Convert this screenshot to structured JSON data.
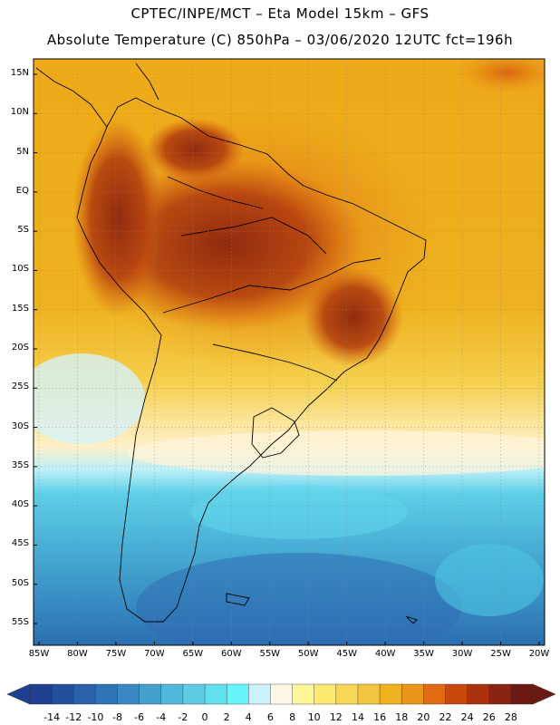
{
  "header": {
    "line1": "CPTEC/INPE/MCT –  Eta Model 15km – GFS",
    "line2": "Absolute Temperature (C) 850hPa – 03/06/2020 12UTC fct=196h"
  },
  "axes": {
    "lat_labels": [
      "15N",
      "10N",
      "5N",
      "EQ",
      "5S",
      "10S",
      "15S",
      "20S",
      "25S",
      "30S",
      "35S",
      "40S",
      "45S",
      "50S",
      "55S"
    ],
    "lat_values": [
      15,
      10,
      5,
      0,
      -5,
      -10,
      -15,
      -20,
      -25,
      -30,
      -35,
      -40,
      -45,
      -50,
      -55
    ],
    "lon_labels": [
      "85W",
      "80W",
      "75W",
      "70W",
      "65W",
      "60W",
      "55W",
      "50W",
      "45W",
      "40W",
      "35W",
      "30W",
      "25W",
      "20W"
    ],
    "lon_values": [
      -85,
      -80,
      -75,
      -70,
      -65,
      -60,
      -55,
      -50,
      -45,
      -40,
      -35,
      -30,
      -25,
      -20
    ]
  },
  "colorbar": {
    "labels": [
      "-14",
      "-12",
      "-10",
      "-8",
      "-6",
      "-4",
      "-2",
      "0",
      "2",
      "4",
      "6",
      "8",
      "10",
      "12",
      "14",
      "16",
      "18",
      "20",
      "22",
      "24",
      "26",
      "28"
    ],
    "colors": [
      "#1f3f8f",
      "#23509a",
      "#2962a8",
      "#2f74b5",
      "#3a88c2",
      "#45a0cd",
      "#52b8da",
      "#5fcce6",
      "#63e0ef",
      "#66f5fa",
      "#cdf1fa",
      "#fff7e6",
      "#fff59a",
      "#fde872",
      "#f8d757",
      "#f3c43f",
      "#eeb11f",
      "#e9951a",
      "#e06b12",
      "#c9480e",
      "#a9320c",
      "#8a2410",
      "#6b1a13"
    ]
  }
}
